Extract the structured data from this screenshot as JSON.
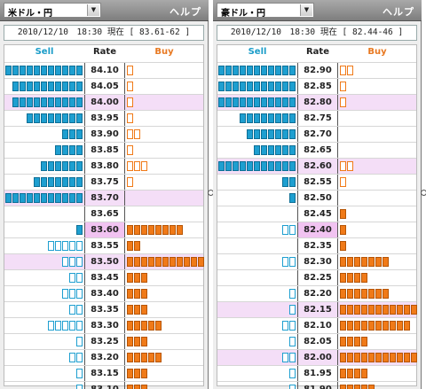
{
  "panels": [
    {
      "pair": "米ドル・円",
      "help": "ヘルプ",
      "timestamp": "2010/12/10　18:30 現在 [ 83.61-62 ]",
      "headers": {
        "sell": "Sell",
        "rate": "Rate",
        "buy": "Buy"
      },
      "current_rate": "83.60",
      "rows": [
        {
          "rate": "84.10",
          "sell": 11,
          "sell_type": "solid",
          "buy": 1,
          "buy_type": "open",
          "hl": false
        },
        {
          "rate": "84.05",
          "sell": 10,
          "sell_type": "solid",
          "buy": 1,
          "buy_type": "open",
          "hl": false
        },
        {
          "rate": "84.00",
          "sell": 10,
          "sell_type": "solid",
          "buy": 1,
          "buy_type": "open",
          "hl": true
        },
        {
          "rate": "83.95",
          "sell": 8,
          "sell_type": "solid",
          "buy": 1,
          "buy_type": "open",
          "hl": false
        },
        {
          "rate": "83.90",
          "sell": 3,
          "sell_type": "solid",
          "buy": 2,
          "buy_type": "open",
          "hl": false
        },
        {
          "rate": "83.85",
          "sell": 4,
          "sell_type": "solid",
          "buy": 1,
          "buy_type": "open",
          "hl": false
        },
        {
          "rate": "83.80",
          "sell": 6,
          "sell_type": "solid",
          "buy": 3,
          "buy_type": "open",
          "hl": false
        },
        {
          "rate": "83.75",
          "sell": 7,
          "sell_type": "solid",
          "buy": 1,
          "buy_type": "open",
          "hl": false
        },
        {
          "rate": "83.70",
          "sell": 11,
          "sell_type": "solid",
          "buy": 0,
          "buy_type": "open",
          "hl": true
        },
        {
          "rate": "83.65",
          "sell": 0,
          "sell_type": "solid",
          "buy": 0,
          "buy_type": "open",
          "hl": false
        },
        {
          "rate": "83.60",
          "sell": 1,
          "sell_type": "solid",
          "buy": 8,
          "buy_type": "solid",
          "hl": false
        },
        {
          "rate": "83.55",
          "sell": 5,
          "sell_type": "open",
          "buy": 2,
          "buy_type": "solid",
          "hl": false
        },
        {
          "rate": "83.50",
          "sell": 3,
          "sell_type": "open",
          "buy": 11,
          "buy_type": "solid",
          "hl": true
        },
        {
          "rate": "83.45",
          "sell": 2,
          "sell_type": "open",
          "buy": 3,
          "buy_type": "solid",
          "hl": false
        },
        {
          "rate": "83.40",
          "sell": 3,
          "sell_type": "open",
          "buy": 3,
          "buy_type": "solid",
          "hl": false
        },
        {
          "rate": "83.35",
          "sell": 2,
          "sell_type": "open",
          "buy": 3,
          "buy_type": "solid",
          "hl": false
        },
        {
          "rate": "83.30",
          "sell": 5,
          "sell_type": "open",
          "buy": 5,
          "buy_type": "solid",
          "hl": false
        },
        {
          "rate": "83.25",
          "sell": 1,
          "sell_type": "open",
          "buy": 3,
          "buy_type": "solid",
          "hl": false
        },
        {
          "rate": "83.20",
          "sell": 2,
          "sell_type": "open",
          "buy": 5,
          "buy_type": "solid",
          "hl": false
        },
        {
          "rate": "83.15",
          "sell": 1,
          "sell_type": "open",
          "buy": 3,
          "buy_type": "solid",
          "hl": false
        },
        {
          "rate": "83.10",
          "sell": 1,
          "sell_type": "open",
          "buy": 3,
          "buy_type": "solid",
          "hl": false
        }
      ]
    },
    {
      "pair": "豪ドル・円",
      "help": "ヘルプ",
      "timestamp": "2010/12/10　18:30 現在 [ 82.44-46 ]",
      "headers": {
        "sell": "Sell",
        "rate": "Rate",
        "buy": "Buy"
      },
      "current_rate": "82.40",
      "rows": [
        {
          "rate": "82.90",
          "sell": 11,
          "sell_type": "solid",
          "buy": 2,
          "buy_type": "open",
          "hl": false
        },
        {
          "rate": "82.85",
          "sell": 11,
          "sell_type": "solid",
          "buy": 1,
          "buy_type": "open",
          "hl": false
        },
        {
          "rate": "82.80",
          "sell": 11,
          "sell_type": "solid",
          "buy": 1,
          "buy_type": "open",
          "hl": true
        },
        {
          "rate": "82.75",
          "sell": 8,
          "sell_type": "solid",
          "buy": 0,
          "buy_type": "open",
          "hl": false
        },
        {
          "rate": "82.70",
          "sell": 7,
          "sell_type": "solid",
          "buy": 0,
          "buy_type": "open",
          "hl": false
        },
        {
          "rate": "82.65",
          "sell": 6,
          "sell_type": "solid",
          "buy": 0,
          "buy_type": "open",
          "hl": false
        },
        {
          "rate": "82.60",
          "sell": 11,
          "sell_type": "solid",
          "buy": 2,
          "buy_type": "open",
          "hl": true
        },
        {
          "rate": "82.55",
          "sell": 2,
          "sell_type": "solid",
          "buy": 1,
          "buy_type": "open",
          "hl": false
        },
        {
          "rate": "82.50",
          "sell": 1,
          "sell_type": "solid",
          "buy": 0,
          "buy_type": "open",
          "hl": false
        },
        {
          "rate": "82.45",
          "sell": 0,
          "sell_type": "solid",
          "buy": 1,
          "buy_type": "solid",
          "hl": false
        },
        {
          "rate": "82.40",
          "sell": 2,
          "sell_type": "open",
          "buy": 1,
          "buy_type": "solid",
          "hl": false
        },
        {
          "rate": "82.35",
          "sell": 0,
          "sell_type": "open",
          "buy": 1,
          "buy_type": "solid",
          "hl": false
        },
        {
          "rate": "82.30",
          "sell": 2,
          "sell_type": "open",
          "buy": 7,
          "buy_type": "solid",
          "hl": false
        },
        {
          "rate": "82.25",
          "sell": 0,
          "sell_type": "open",
          "buy": 4,
          "buy_type": "solid",
          "hl": false
        },
        {
          "rate": "82.20",
          "sell": 1,
          "sell_type": "open",
          "buy": 7,
          "buy_type": "solid",
          "hl": false
        },
        {
          "rate": "82.15",
          "sell": 1,
          "sell_type": "open",
          "buy": 11,
          "buy_type": "solid",
          "hl": true
        },
        {
          "rate": "82.10",
          "sell": 2,
          "sell_type": "open",
          "buy": 10,
          "buy_type": "solid",
          "hl": false
        },
        {
          "rate": "82.05",
          "sell": 1,
          "sell_type": "open",
          "buy": 4,
          "buy_type": "solid",
          "hl": false
        },
        {
          "rate": "82.00",
          "sell": 2,
          "sell_type": "open",
          "buy": 11,
          "buy_type": "solid",
          "hl": true
        },
        {
          "rate": "81.95",
          "sell": 1,
          "sell_type": "open",
          "buy": 4,
          "buy_type": "solid",
          "hl": false
        },
        {
          "rate": "81.90",
          "sell": 1,
          "sell_type": "open",
          "buy": 5,
          "buy_type": "solid",
          "hl": false
        }
      ]
    }
  ],
  "colors": {
    "sell": "#1e9fd0",
    "buy": "#f07a18",
    "highlight": "#f4def7",
    "current": "#f1c3f1"
  }
}
